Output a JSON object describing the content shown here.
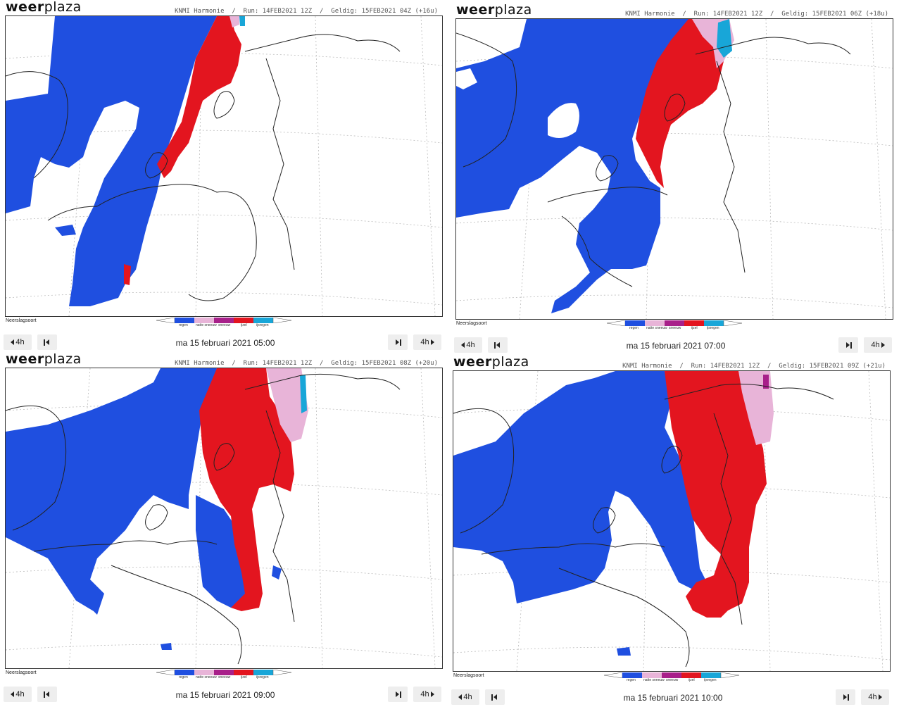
{
  "brand": {
    "bold": "weer",
    "light": "plaza"
  },
  "legend_title": "Neerslagsoort",
  "legend_items": [
    {
      "label": "regen",
      "color": "#1f4fe0"
    },
    {
      "label": "natte sneeuw",
      "color": "#e8b4d8"
    },
    {
      "label": "sneeuw",
      "color": "#a8208a"
    },
    {
      "label": "ijzel",
      "color": "#e3151f"
    },
    {
      "label": "ijsregen",
      "color": "#18a6d8"
    }
  ],
  "colors": {
    "rain": "#1f4fe0",
    "sleet": "#e8b4d8",
    "snow": "#a8208a",
    "freezing_rain": "#e3151f",
    "ice_pellets": "#18a6d8",
    "border": "#222222"
  },
  "controls": {
    "back_label": "4h",
    "forward_label": "4h",
    "first_icon": "skip-to-first-icon",
    "last_icon": "skip-to-last-icon"
  },
  "panels": [
    {
      "run_info": "KNMI Harmonie  /  Run: 14FEB2021 12Z  /  Geldig: 15FEB2021 04Z (+16u)",
      "date_label": "ma 15 februari 2021 05:00"
    },
    {
      "run_info": "KNMI Harmonie  /  Run: 14FEB2021 12Z  /  Geldig: 15FEB2021 06Z (+18u)",
      "date_label": "ma 15 februari 2021 07:00"
    },
    {
      "run_info": "KNMI Harmonie  /  Run: 14FEB2021 12Z  /  Geldig: 15FEB2021 08Z (+20u)",
      "date_label": "ma 15 februari 2021 09:00"
    },
    {
      "run_info": "KNMI Harmonie  /  Run: 14FEB2021 12Z  /  Geldig: 15FEB2021 09Z (+21u)",
      "date_label": "ma 15 februari 2021 10:00"
    }
  ]
}
